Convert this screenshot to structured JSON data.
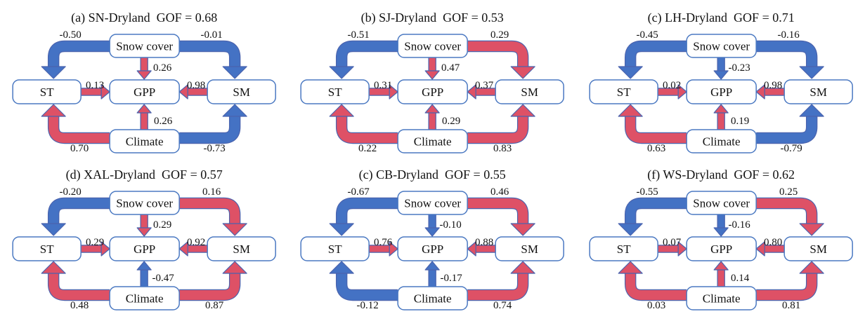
{
  "figure": {
    "description": "Six path diagrams of snow/climate effects on GPP in drylands",
    "node_labels": {
      "snow": "Snow cover",
      "st": "ST",
      "gpp": "GPP",
      "sm": "SM",
      "climate": "Climate"
    },
    "colors": {
      "positive_arrow": "#de5166",
      "negative_arrow": "#4472c4",
      "arrow_outline": "#4a63ae",
      "box_border": "#4b79c2",
      "box_fill": "#ffffff",
      "text": "#111111"
    },
    "panels": [
      {
        "title_site": "(a) SN-Dryland",
        "title_gof": "GOF = 0.68",
        "coefficients": {
          "snow_st": "-0.50",
          "snow_sm": "-0.01",
          "snow_gpp": "0.26",
          "st_gpp": "0.13",
          "sm_gpp": "0.98",
          "climate_gpp": "0.26",
          "climate_st": "0.70",
          "climate_sm": "-0.73"
        }
      },
      {
        "title_site": "(b) SJ-Dryland",
        "title_gof": "GOF = 0.53",
        "coefficients": {
          "snow_st": "-0.51",
          "snow_sm": "0.29",
          "snow_gpp": "0.47",
          "st_gpp": "0.31",
          "sm_gpp": "0.37",
          "climate_gpp": "0.29",
          "climate_st": "0.22",
          "climate_sm": "0.83"
        }
      },
      {
        "title_site": "(c) LH-Dryland",
        "title_gof": "GOF = 0.71",
        "coefficients": {
          "snow_st": "-0.45",
          "snow_sm": "-0.16",
          "snow_gpp": "-0.23",
          "st_gpp": "0.02",
          "sm_gpp": "0.98",
          "climate_gpp": "0.19",
          "climate_st": "0.63",
          "climate_sm": "-0.79"
        }
      },
      {
        "title_site": "(d) XAL-Dryland",
        "title_gof": "GOF = 0.57",
        "coefficients": {
          "snow_st": "-0.20",
          "snow_sm": "0.16",
          "snow_gpp": "0.29",
          "st_gpp": "0.29",
          "sm_gpp": "0.92",
          "climate_gpp": "-0.47",
          "climate_st": "0.48",
          "climate_sm": "0.87"
        }
      },
      {
        "title_site": "(c) CB-Dryland",
        "title_gof": "GOF = 0.55",
        "coefficients": {
          "snow_st": "-0.67",
          "snow_sm": "0.46",
          "snow_gpp": "-0.10",
          "st_gpp": "0.76",
          "sm_gpp": "0.88",
          "climate_gpp": "-0.17",
          "climate_st": "-0.12",
          "climate_sm": "0.74"
        }
      },
      {
        "title_site": "(f) WS-Dryland",
        "title_gof": "GOF = 0.62",
        "coefficients": {
          "snow_st": "-0.55",
          "snow_sm": "0.25",
          "snow_gpp": "-0.16",
          "st_gpp": "0.07",
          "sm_gpp": "0.80",
          "climate_gpp": "0.14",
          "climate_st": "0.03",
          "climate_sm": "0.81"
        }
      }
    ]
  }
}
